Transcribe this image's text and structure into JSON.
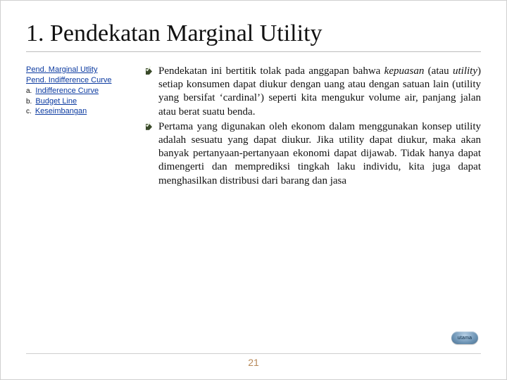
{
  "colors": {
    "link": "#0b3aa0",
    "text": "#111111",
    "rule": "#bcbcbc",
    "bullet_fill": "#3a4a2a",
    "bullet_check": "#e9efe0",
    "pagenum": "#b88a5a",
    "pill_grad_top": "#b7d0e6",
    "pill_grad_mid": "#6d94b5",
    "pill_grad_bot": "#4a6f8e",
    "background": "#ffffff"
  },
  "typography": {
    "title_family": "Times New Roman",
    "title_size_pt": 26,
    "body_family": "Times New Roman",
    "body_size_pt": 11,
    "sidebar_family": "Arial",
    "sidebar_size_pt": 8,
    "pagenum_family": "Arial",
    "pagenum_size_pt": 10
  },
  "title": "1. Pendekatan Marginal Utility",
  "sidebar": {
    "items": [
      {
        "prefix": "",
        "label": "Pend. Marginal Utlity"
      },
      {
        "prefix": "",
        "label": "Pend. Indifference Curve"
      },
      {
        "prefix": "a.",
        "label": "Indifference Curve"
      },
      {
        "prefix": "b.",
        "label": "Budget Line"
      },
      {
        "prefix": "c.",
        "label": "Keseimbangan"
      }
    ]
  },
  "bullets": [
    {
      "runs": [
        {
          "t": "Pendekatan ini bertitik tolak pada anggapan bahwa "
        },
        {
          "t": "kepuasan",
          "italic": true
        },
        {
          "t": " (atau "
        },
        {
          "t": "utility",
          "italic": true
        },
        {
          "t": ") setiap konsumen dapat diukur dengan uang atau dengan satuan lain (utility yang bersifat ‘cardinal’) seperti kita mengukur volume air, panjang jalan atau berat suatu benda."
        }
      ]
    },
    {
      "runs": [
        {
          "t": "Pertama yang digunakan oleh ekonom dalam menggunakan konsep utility adalah sesuatu yang dapat diukur. Jika utility dapat diukur, maka akan banyak pertanyaan-pertanyaan ekonomi dapat dijawab. Tidak hanya dapat dimengerti dan memprediksi tingkah laku individu, kita juga dapat menghasilkan distribusi dari barang dan jasa"
        }
      ]
    }
  ],
  "nav_pill_label": "utama",
  "page_number": "21"
}
